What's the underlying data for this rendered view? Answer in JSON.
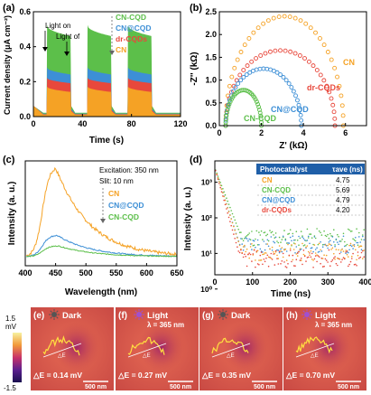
{
  "panels": {
    "a": "(a)",
    "b": "(b)",
    "c": "(c)",
    "d": "(d)",
    "e": "(e)",
    "f": "(f)",
    "g": "(g)",
    "h": "(h)"
  },
  "colors": {
    "CN": "#f5a225",
    "CN-CQD": "#5cbf4a",
    "CN@CQD": "#3d8fd6",
    "dr-CQDs": "#e8483c"
  },
  "chart_data": [
    {
      "type": "area",
      "id": "a",
      "xlabel": "Time (s)",
      "ylabel": "Current density (μA cm⁻²)",
      "xlim": [
        0,
        120
      ],
      "ylim": [
        0,
        0.6
      ],
      "xticks": [
        0,
        40,
        80,
        120
      ],
      "yticks": [
        0.0,
        0.2,
        0.4,
        0.6
      ],
      "annotations": [
        "Light on",
        "Light of"
      ],
      "legend": [
        "CN-CQD",
        "CN@CQD",
        "dr-CQDs",
        "CN"
      ],
      "light_on_intervals": [
        [
          11,
          30
        ],
        [
          44,
          63
        ],
        [
          77,
          96
        ]
      ],
      "series": [
        {
          "name": "CN-CQD",
          "on_start": 0.52,
          "on_end": 0.46,
          "dark": 0.02
        },
        {
          "name": "CN@CQD",
          "on_start": 0.28,
          "on_end": 0.24,
          "dark": 0.015
        },
        {
          "name": "dr-CQDs",
          "on_start": 0.22,
          "on_end": 0.19,
          "dark": 0.012
        },
        {
          "name": "CN",
          "on_start": 0.17,
          "on_end": 0.14,
          "dark": 0.01
        }
      ]
    },
    {
      "type": "scatter",
      "id": "b",
      "xlabel": "Z' (kΩ)",
      "ylabel": "-Z'' (kΩ)",
      "xlim": [
        0,
        7
      ],
      "ylim": [
        0,
        2.5
      ],
      "xticks": [
        0,
        2,
        4,
        6
      ],
      "yticks": [
        0.0,
        0.5,
        1.0,
        1.5,
        2.0,
        2.5
      ],
      "series": [
        {
          "name": "CN",
          "x0": 0.3,
          "x1": 5.9,
          "height": 2.4
        },
        {
          "name": "dr-CQDs",
          "x0": 0.3,
          "x1": 5.5,
          "height": 1.65
        },
        {
          "name": "CN@CQD",
          "x0": 0.3,
          "x1": 3.9,
          "height": 1.25
        },
        {
          "name": "CN-CQD",
          "x0": 0.3,
          "x1": 2.0,
          "height": 0.78
        }
      ]
    },
    {
      "type": "line",
      "id": "c",
      "xlabel": "Wavelength (nm)",
      "ylabel": "Intensity (a. u.)",
      "xlim": [
        400,
        650
      ],
      "xticks": [
        400,
        450,
        500,
        550,
        600,
        650
      ],
      "annotations": [
        "Excitation: 350 nm",
        "Slit: 10 nm"
      ],
      "legend": [
        "CN",
        "CN@CQD",
        "CN-CQD"
      ],
      "series": [
        {
          "name": "CN",
          "peak_x": 450,
          "peak_y": 1.0
        },
        {
          "name": "CN@CQD",
          "peak_x": 452,
          "peak_y": 0.24
        },
        {
          "name": "CN-CQD",
          "peak_x": 455,
          "peak_y": 0.12
        }
      ]
    },
    {
      "type": "scatter",
      "id": "d",
      "xlabel": "Time (ns)",
      "ylabel": "Intensity (a. u.)",
      "yscale": "log",
      "xlim": [
        0,
        400
      ],
      "xticks": [
        0,
        100,
        200,
        300,
        400
      ],
      "yticks": [
        "10⁰",
        "10¹",
        "10²",
        "10³"
      ],
      "table": {
        "header": [
          "Photocatalyst",
          "τave (ns)"
        ],
        "rows": [
          [
            "CN",
            "4.75"
          ],
          [
            "CN-CQD",
            "5.69"
          ],
          [
            "CN@CQD",
            "4.79"
          ],
          [
            "dr-CQDs",
            "4.20"
          ]
        ]
      }
    }
  ],
  "kpfm": {
    "scale_max": "1.5",
    "scale_unit": "mV",
    "scale_min": "-1.5",
    "scalebar": "500 nm",
    "frames": [
      {
        "id": "e",
        "state": "Dark",
        "wave": "",
        "delta": "△E = 0.14  mV"
      },
      {
        "id": "f",
        "state": "Light",
        "wave": "λ = 365 nm",
        "delta": "△E = 0.27  mV"
      },
      {
        "id": "g",
        "state": "Dark",
        "wave": "",
        "delta": "△E = 0.35  mV"
      },
      {
        "id": "h",
        "state": "Light",
        "wave": "λ = 365 nm",
        "delta": "△E = 0.70  mV"
      }
    ],
    "inset_label": "△E"
  }
}
